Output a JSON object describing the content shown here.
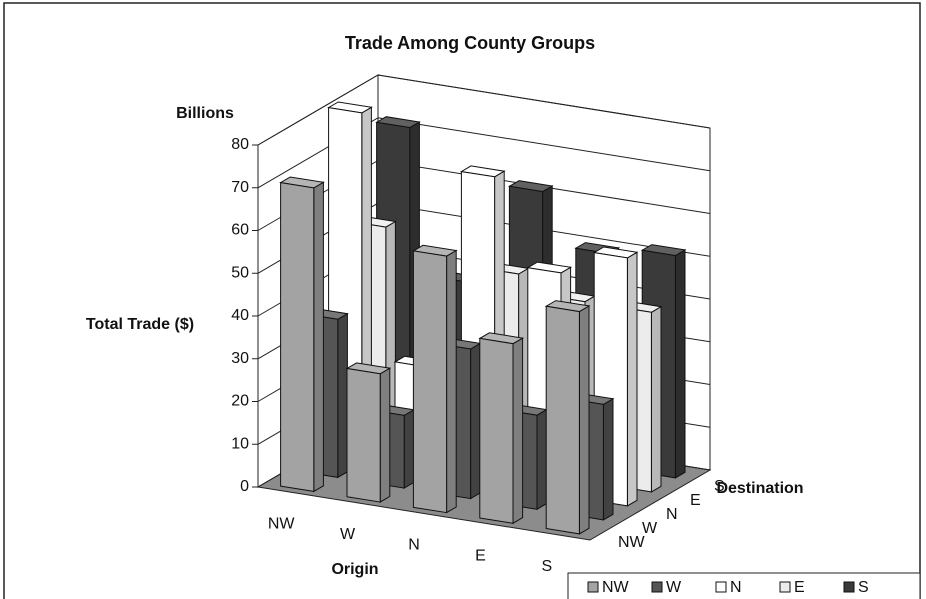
{
  "chart_data": {
    "type": "bar3d",
    "title": "Trade Among County Groups",
    "unit_label": "Billions",
    "ylabel": "Total Trade ($)",
    "xlabel": "Origin",
    "depth_label": "Destination",
    "categories": [
      "NW",
      "W",
      "N",
      "E",
      "S"
    ],
    "series": [
      {
        "name": "NW",
        "color": "#a3a3a3",
        "values": [
          71,
          30,
          60,
          42,
          52
        ]
      },
      {
        "name": "W",
        "color": "#555555",
        "values": [
          37,
          17,
          35,
          22,
          27
        ]
      },
      {
        "name": "N",
        "color": "#ffffff",
        "values": [
          82,
          25,
          72,
          52,
          58
        ]
      },
      {
        "name": "E",
        "color": "#ececec",
        "values": [
          52,
          20,
          46,
          42,
          42
        ]
      },
      {
        "name": "S",
        "color": "#3a3a3a",
        "values": [
          72,
          38,
          62,
          50,
          52
        ]
      }
    ],
    "ylim": [
      0,
      80
    ],
    "yticks": [
      0,
      10,
      20,
      30,
      40,
      50,
      60,
      70,
      80
    ],
    "grid": true
  }
}
